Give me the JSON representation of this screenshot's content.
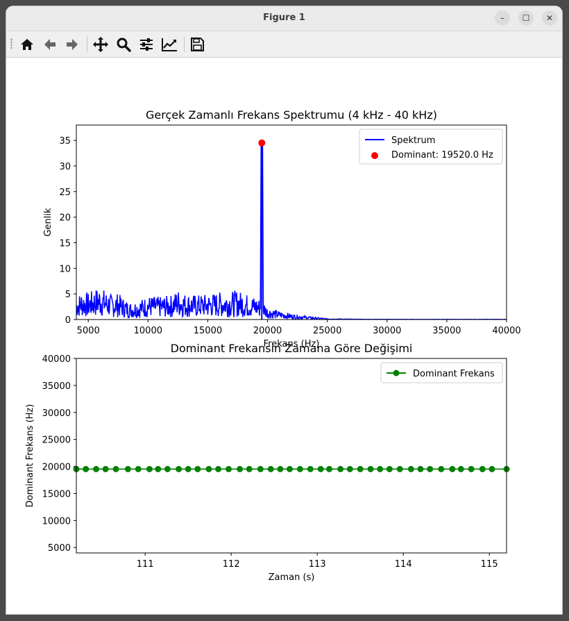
{
  "window": {
    "title": "Figure 1",
    "minimize_label": "–",
    "maximize_label": "☐",
    "close_label": "✕"
  },
  "toolbar": {
    "tools": [
      {
        "name": "home",
        "icon": "home-icon"
      },
      {
        "name": "back",
        "icon": "arrow-left-icon"
      },
      {
        "name": "forward",
        "icon": "arrow-right-icon"
      },
      {
        "name": "pan",
        "icon": "move-icon"
      },
      {
        "name": "zoom",
        "icon": "magnifier-icon"
      },
      {
        "name": "configure-subplots",
        "icon": "sliders-icon"
      },
      {
        "name": "edit-axis",
        "icon": "line-chart-icon"
      },
      {
        "name": "save",
        "icon": "save-icon"
      }
    ]
  },
  "chart_data": [
    {
      "type": "line",
      "title": "Gerçek Zamanlı Frekans Spektrumu (4 kHz - 40 kHz)",
      "xlabel": "Frekans (Hz)",
      "ylabel": "Genlik",
      "xlim": [
        4000,
        40000
      ],
      "ylim": [
        0,
        38
      ],
      "xticks": [
        5000,
        10000,
        15000,
        20000,
        25000,
        30000,
        35000,
        40000
      ],
      "yticks": [
        0,
        5,
        10,
        15,
        20,
        25,
        30,
        35
      ],
      "grid": false,
      "legend_position": "top-right",
      "series": [
        {
          "name": "Spektrum",
          "color": "#0000ff",
          "x": [
            4000,
            4500,
            5000,
            5500,
            6000,
            6500,
            7000,
            7500,
            8000,
            8500,
            9000,
            9500,
            10000,
            11000,
            12000,
            12500,
            13000,
            14000,
            15000,
            16000,
            17000,
            17500,
            18000,
            18500,
            19000,
            19400,
            19520,
            19650,
            20000,
            21000,
            22000,
            23000,
            24000,
            25000,
            27000,
            30000,
            35000,
            40000
          ],
          "y": [
            2.5,
            3.0,
            2.8,
            3.2,
            3.5,
            3.0,
            2.6,
            2.8,
            2.2,
            1.8,
            2.0,
            2.2,
            2.5,
            2.4,
            2.6,
            3.2,
            2.8,
            2.6,
            2.7,
            2.9,
            3.0,
            3.1,
            2.8,
            2.6,
            2.4,
            2.2,
            34.5,
            2.0,
            1.3,
            0.9,
            0.6,
            0.4,
            0.25,
            0.1,
            0.05,
            0.02,
            0.02,
            0.02
          ]
        }
      ],
      "marker": {
        "name": "Dominant: 19520.0 Hz",
        "color": "#ff0000",
        "x": 19520,
        "y": 34.5
      }
    },
    {
      "type": "line",
      "title": "Dominant Frekansın Zamana Göre Değişimi",
      "xlabel": "Zaman (s)",
      "ylabel": "Dominant Frekans (Hz)",
      "xlim": [
        110.2,
        115.2
      ],
      "ylim": [
        4000,
        40000
      ],
      "xticks": [
        111,
        112,
        113,
        114,
        115
      ],
      "yticks": [
        5000,
        10000,
        15000,
        20000,
        25000,
        30000,
        35000,
        40000
      ],
      "grid": false,
      "legend_position": "top-right",
      "series": [
        {
          "name": "Dominant Frekans",
          "color": "#008000",
          "value": 19520,
          "x": [
            110.2,
            110.31,
            110.43,
            110.54,
            110.66,
            110.8,
            110.92,
            111.05,
            111.15,
            111.26,
            111.39,
            111.5,
            111.61,
            111.74,
            111.85,
            111.97,
            112.1,
            112.21,
            112.34,
            112.46,
            112.57,
            112.68,
            112.8,
            112.92,
            113.04,
            113.14,
            113.27,
            113.38,
            113.5,
            113.62,
            113.73,
            113.84,
            113.96,
            114.09,
            114.2,
            114.31,
            114.44,
            114.57,
            114.67,
            114.79,
            114.92,
            115.03,
            115.2
          ]
        }
      ]
    }
  ]
}
